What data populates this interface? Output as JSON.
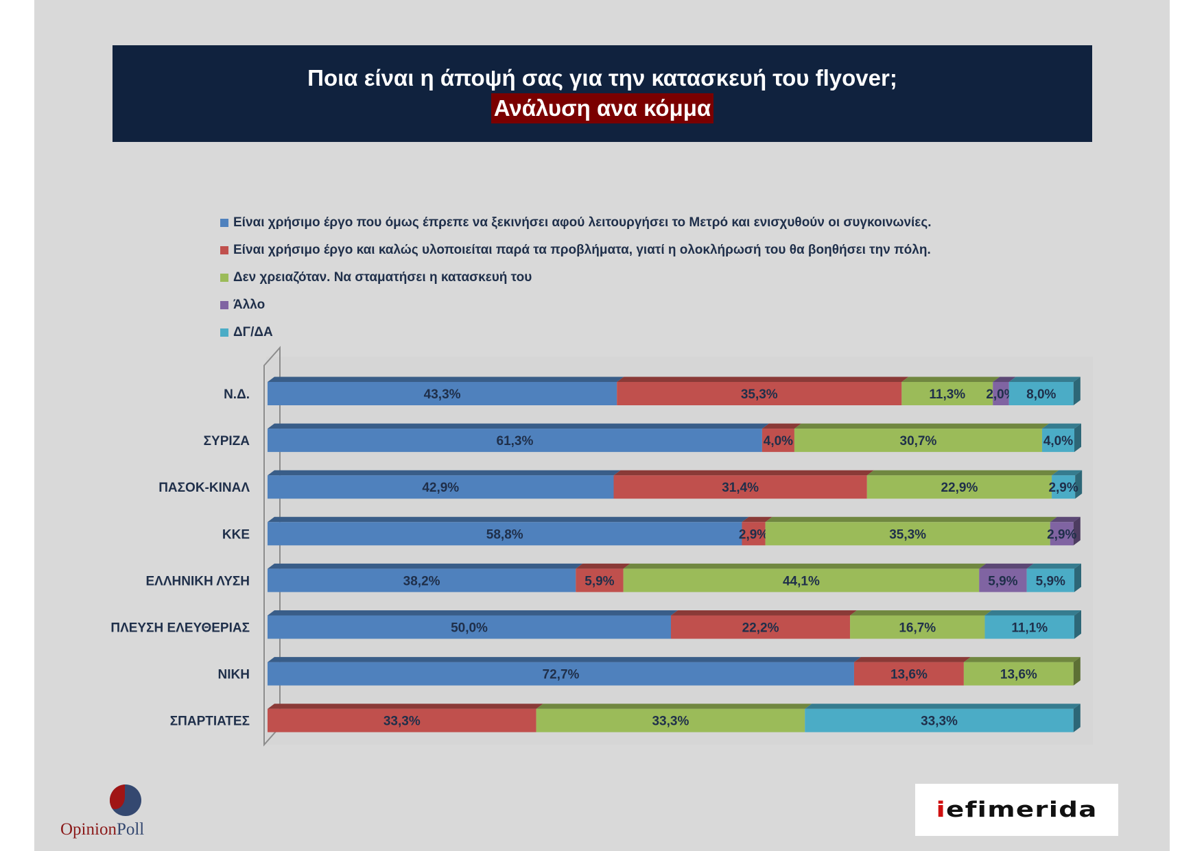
{
  "title": {
    "line1": "Ποια είναι η άποψή σας για την κατασκευή του flyover;",
    "line2": "Ανάλυση ανα κόμμα"
  },
  "chart_data": {
    "type": "bar",
    "orientation": "horizontal",
    "stacked": true,
    "categories": [
      "Ν.Δ.",
      "ΣΥΡΙΖΑ",
      "ΠΑΣΟΚ-ΚΙΝΑΛ",
      "ΚΚΕ",
      "ΕΛΛΗΝΙΚΗ ΛΥΣΗ",
      "ΠΛΕΥΣΗ ΕΛΕΥΘΕΡΙΑΣ",
      "ΝΙΚΗ",
      "ΣΠΑΡΤΙΑΤΕΣ"
    ],
    "series": [
      {
        "name": "Είναι χρήσιμο έργο που όμως έπρεπε να ξεκινήσει αφού λειτουργήσει το Μετρό και ενισχυθούν οι συγκοινωνίες.",
        "color": "#4f81bd",
        "values": [
          43.3,
          61.3,
          42.9,
          58.8,
          38.2,
          50.0,
          72.7,
          0
        ],
        "labels": [
          "43,3%",
          "61,3%",
          "42,9%",
          "58,8%",
          "38,2%",
          "50,0%",
          "72,7%",
          ""
        ]
      },
      {
        "name": "Είναι χρήσιμο έργο και καλώς υλοποιείται παρά τα προβλήματα, γιατί η ολοκλήρωσή του θα βοηθήσει την πόλη.",
        "color": "#c0504d",
        "values": [
          35.3,
          4.0,
          31.4,
          2.9,
          5.9,
          22.2,
          13.6,
          33.3
        ],
        "labels": [
          "35,3%",
          "4,0%",
          "31,4%",
          "2,9%",
          "5,9%",
          "22,2%",
          "13,6%",
          "33,3%"
        ]
      },
      {
        "name": "Δεν χρειαζόταν. Να σταματήσει η κατασκευή του",
        "color": "#9bbb59",
        "values": [
          11.3,
          30.7,
          22.9,
          35.3,
          44.1,
          16.7,
          13.6,
          33.3
        ],
        "labels": [
          "11,3%",
          "30,7%",
          "22,9%",
          "35,3%",
          "44,1%",
          "16,7%",
          "13,6%",
          "33,3%"
        ]
      },
      {
        "name": "Άλλο",
        "color": "#8064a2",
        "values": [
          2.0,
          0,
          0,
          2.9,
          5.9,
          0,
          0,
          0
        ],
        "labels": [
          "2,0%",
          "",
          "",
          "2,9%",
          "5,9%",
          "",
          "",
          ""
        ]
      },
      {
        "name": "ΔΓ/ΔΑ",
        "color": "#4bacc6",
        "values": [
          8.0,
          4.0,
          2.9,
          0,
          5.9,
          11.1,
          0,
          33.3
        ],
        "labels": [
          "8,0%",
          "4,0%",
          "2,9%",
          "",
          "5,9%",
          "11,1%",
          "",
          "33,3%"
        ]
      }
    ],
    "xlim": [
      0,
      100
    ],
    "legend_position": "top",
    "grid": false,
    "style": "3d"
  },
  "logos": {
    "opinionpoll": {
      "part1": "Opinion",
      "part2": "Poll"
    },
    "iefimerida": {
      "first": "i",
      "rest": "efimerida"
    }
  }
}
